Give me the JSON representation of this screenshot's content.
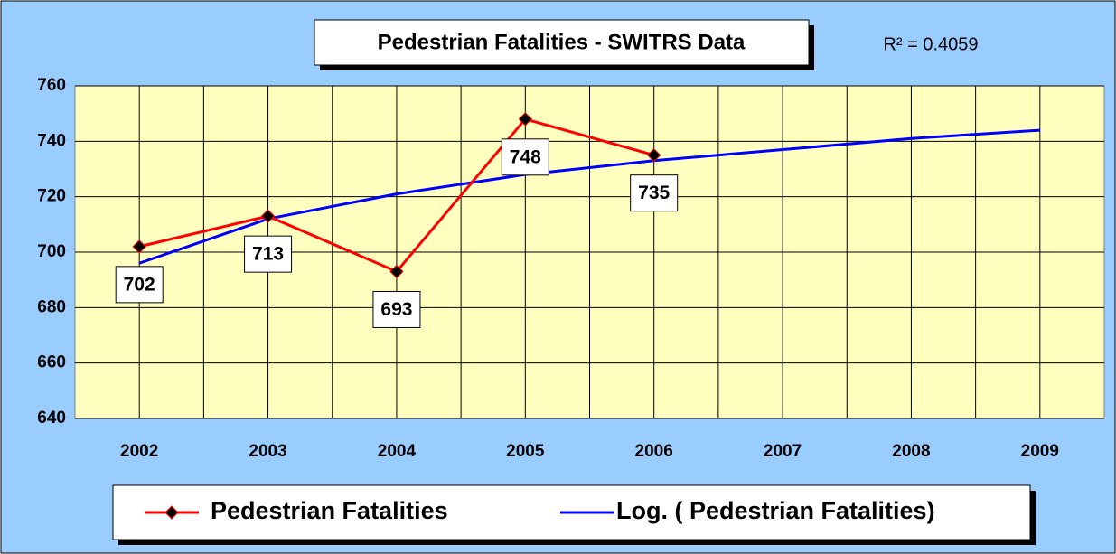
{
  "chart_data": {
    "type": "line",
    "title": "Pedestrian Fatalities - SWITRS Data",
    "annotation": "R² = 0.4059",
    "categories": [
      "2002",
      "2003",
      "2004",
      "2005",
      "2006",
      "2007",
      "2008",
      "2009"
    ],
    "series": [
      {
        "name": "Pedestrian Fatalities",
        "color": "#ff0000",
        "marker_color": "#000000",
        "values": [
          702,
          713,
          693,
          748,
          735,
          null,
          null,
          null
        ]
      },
      {
        "name": "Log. ( Pedestrian Fatalities)",
        "color": "#0000ff",
        "values": [
          696,
          712,
          721,
          728,
          733,
          737,
          741,
          744
        ]
      }
    ],
    "ylim": [
      640,
      760
    ],
    "yticks": [
      640,
      660,
      680,
      700,
      720,
      740,
      760
    ],
    "grid": true,
    "legend": "bottom"
  }
}
